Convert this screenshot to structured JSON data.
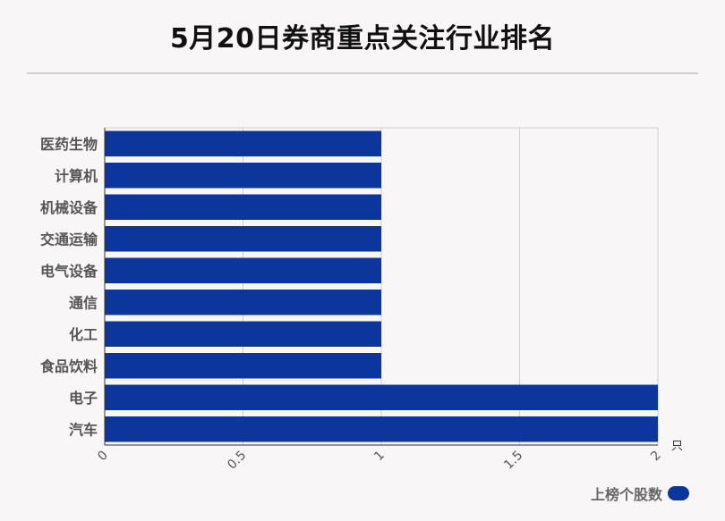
{
  "chart_data": {
    "type": "bar",
    "orientation": "horizontal",
    "title": "5月20日券商重点关注行业排名",
    "categories": [
      "医药生物",
      "计算机",
      "机械设备",
      "交通运输",
      "电气设备",
      "通信",
      "化工",
      "食品饮料",
      "电子",
      "汽车"
    ],
    "series": [
      {
        "name": "上榜个股数",
        "values": [
          1,
          1,
          1,
          1,
          1,
          1,
          1,
          1,
          2,
          2
        ]
      }
    ],
    "xlim": [
      0,
      2
    ],
    "xticks": [
      "0",
      "0.5",
      "1",
      "1.5",
      "2"
    ],
    "xunit": "只",
    "grid": true,
    "legend_position": "bottom-right"
  },
  "colors": {
    "bar": "#0c369b"
  }
}
